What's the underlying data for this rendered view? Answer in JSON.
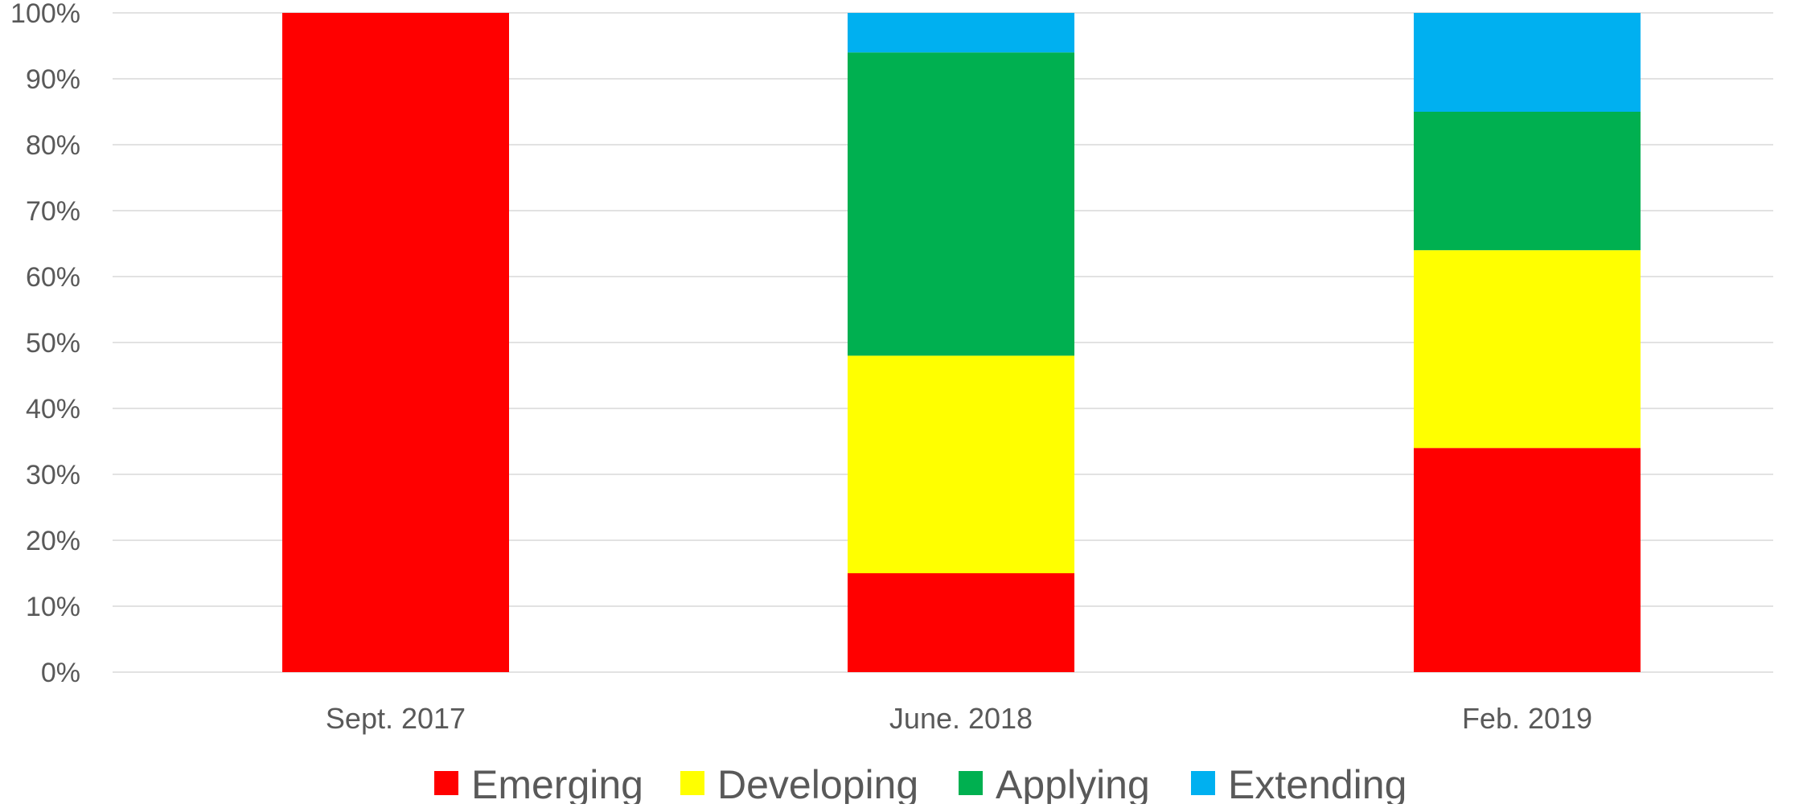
{
  "chart_data": {
    "type": "bar",
    "stacked": true,
    "categories": [
      "Sept. 2017",
      "June. 2018",
      "Feb. 2019"
    ],
    "series": [
      {
        "name": "Emerging",
        "color": "#ff0000",
        "values": [
          100,
          15,
          34
        ]
      },
      {
        "name": "Developing",
        "color": "#ffff00",
        "values": [
          0,
          33,
          30
        ]
      },
      {
        "name": "Applying",
        "color": "#00b050",
        "values": [
          0,
          46,
          21
        ]
      },
      {
        "name": "Extending",
        "color": "#00b0f0",
        "values": [
          0,
          6,
          15
        ]
      }
    ],
    "ylim": [
      0,
      100
    ],
    "yticks": [
      "0%",
      "10%",
      "20%",
      "30%",
      "40%",
      "50%",
      "60%",
      "70%",
      "80%",
      "90%",
      "100%"
    ],
    "grid": true,
    "legend_position": "bottom",
    "title": "",
    "xlabel": "",
    "ylabel": ""
  }
}
